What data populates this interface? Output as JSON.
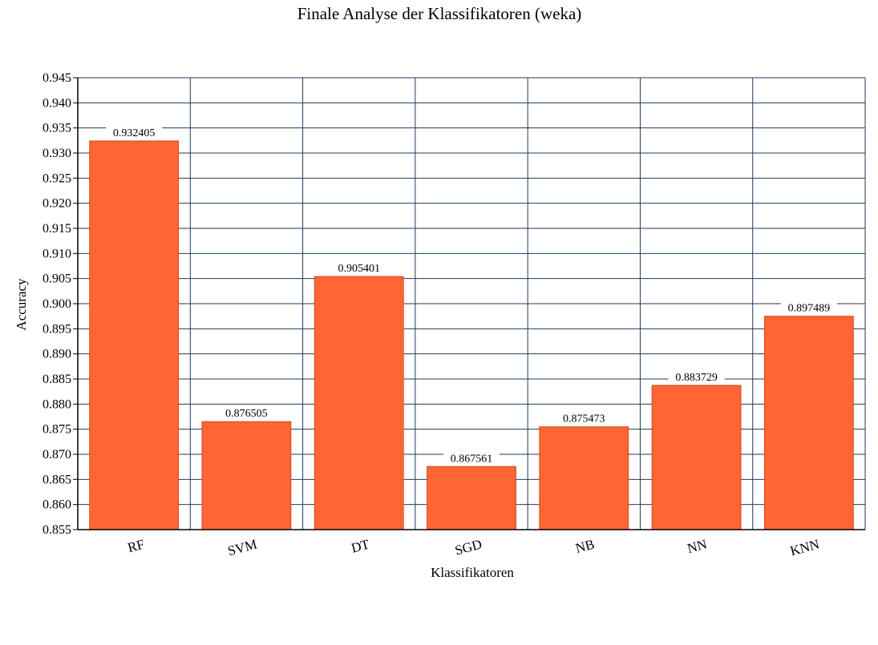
{
  "chart_data": {
    "type": "bar",
    "title": "Finale Analyse der Klassifikatoren (weka)",
    "xlabel": "Klassifikatoren",
    "ylabel": "Accuracy",
    "categories": [
      "RF",
      "SVM",
      "DT",
      "SGD",
      "NB",
      "NN",
      "KNN"
    ],
    "values": [
      0.932405,
      0.876505,
      0.905401,
      0.867561,
      0.875473,
      0.883729,
      0.897489
    ],
    "value_labels": [
      "0.932405",
      "0.876505",
      "0.905401",
      "0.867561",
      "0.875473",
      "0.883729",
      "0.897489"
    ],
    "ylim": [
      0.855,
      0.945
    ],
    "yticks": [
      "0.855",
      "0.860",
      "0.865",
      "0.870",
      "0.875",
      "0.880",
      "0.885",
      "0.890",
      "0.895",
      "0.900",
      "0.905",
      "0.910",
      "0.915",
      "0.920",
      "0.925",
      "0.930",
      "0.935",
      "0.940",
      "0.945"
    ],
    "grid": true,
    "legend": "none",
    "colors": {
      "bar": "#ff6633",
      "bar_edge": "#cc4a1f",
      "grid": "#1f3a5f",
      "axis": "#000000"
    }
  }
}
